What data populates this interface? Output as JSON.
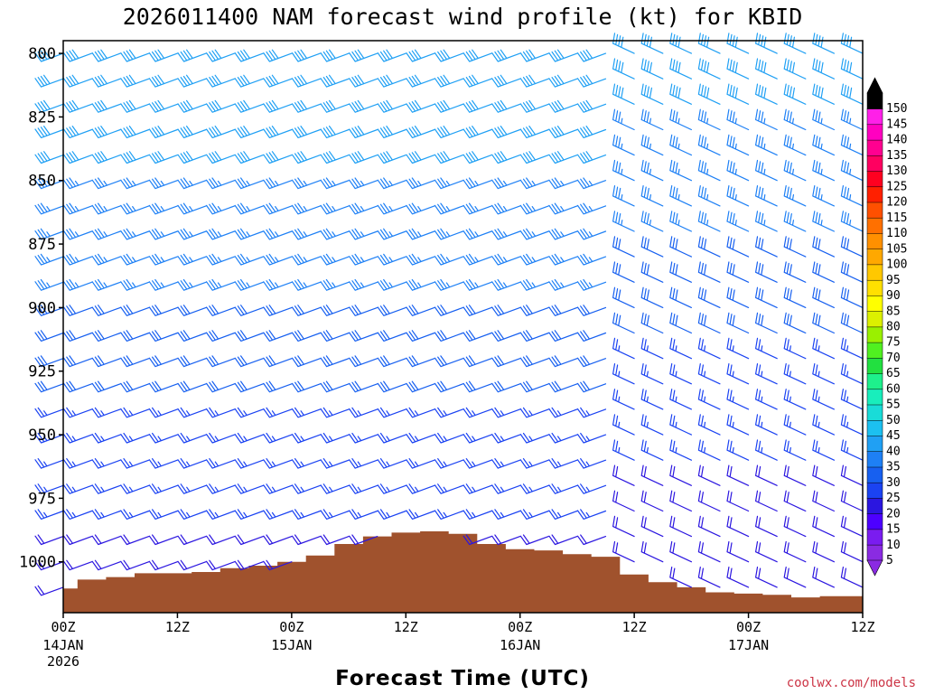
{
  "chart_data": {
    "type": "wind-barb-time-height",
    "title": "2026011400 NAM forecast wind profile (kt) for KBID",
    "xlabel": "Forecast Time (UTC)",
    "ylabel": "",
    "credit": "coolwx.com/models",
    "units": "kt",
    "pressure_range_hpa": [
      795,
      1020
    ],
    "pressure_levels_hpa": [
      800,
      810,
      820,
      830,
      840,
      850,
      860,
      870,
      880,
      890,
      900,
      910,
      920,
      930,
      940,
      950,
      960,
      970,
      980,
      990,
      1000,
      1010
    ],
    "y_ticks": [
      {
        "value": 800,
        "label": "800"
      },
      {
        "value": 825,
        "label": "825"
      },
      {
        "value": 850,
        "label": "850"
      },
      {
        "value": 875,
        "label": "875"
      },
      {
        "value": 900,
        "label": "900"
      },
      {
        "value": 925,
        "label": "925"
      },
      {
        "value": 950,
        "label": "950"
      },
      {
        "value": 975,
        "label": "975"
      },
      {
        "value": 1000,
        "label": "1000"
      }
    ],
    "time_range_hours": [
      0,
      84
    ],
    "time_step_hours": 3,
    "x_ticks": [
      {
        "hour": 0,
        "label": "00Z",
        "sub": [
          "14JAN",
          "2026"
        ]
      },
      {
        "hour": 12,
        "label": "12Z",
        "sub": []
      },
      {
        "hour": 24,
        "label": "00Z",
        "sub": [
          "15JAN"
        ]
      },
      {
        "hour": 36,
        "label": "12Z",
        "sub": []
      },
      {
        "hour": 48,
        "label": "00Z",
        "sub": [
          "16JAN"
        ]
      },
      {
        "hour": 60,
        "label": "12Z",
        "sub": []
      },
      {
        "hour": 72,
        "label": "00Z",
        "sub": [
          "17JAN"
        ]
      },
      {
        "hour": 84,
        "label": "12Z",
        "sub": []
      }
    ],
    "surface_pressure_hpa": {
      "hours": [
        0,
        3,
        6,
        9,
        12,
        15,
        18,
        21,
        24,
        27,
        30,
        33,
        36,
        39,
        42,
        45,
        48,
        51,
        54,
        57,
        60,
        63,
        66,
        69,
        72,
        75,
        78,
        81,
        84
      ],
      "pressure": [
        1010.5,
        1007,
        1006,
        1004.5,
        1004.5,
        1004,
        1002.5,
        1001.5,
        1000,
        997.5,
        993,
        990,
        988.5,
        988,
        989,
        993,
        995,
        995.5,
        997,
        998,
        1005,
        1008,
        1010,
        1012,
        1012.5,
        1013,
        1014,
        1013.5,
        1013.5
      ]
    },
    "wind_regimes": [
      {
        "hours": [
          0,
          57
        ],
        "direction_deg": 250,
        "speed_top_kt": 44,
        "speed_bottom_kt": 22
      },
      {
        "hours": [
          60,
          84
        ],
        "direction_deg": 295,
        "speed_top_kt": 42,
        "speed_bottom_kt": 20
      }
    ],
    "colorbar": {
      "labels": [
        5,
        10,
        15,
        20,
        25,
        30,
        35,
        40,
        45,
        50,
        55,
        60,
        65,
        70,
        75,
        80,
        85,
        90,
        95,
        100,
        105,
        110,
        115,
        120,
        125,
        130,
        135,
        140,
        145,
        150
      ],
      "colors": [
        "#8a2be2",
        "#7a1cf0",
        "#4d00ff",
        "#2b16e0",
        "#1b43f2",
        "#1760f0",
        "#1e80f5",
        "#20a0f4",
        "#1cc0f0",
        "#19dcd8",
        "#18eebc",
        "#1ef08c",
        "#22e040",
        "#50f020",
        "#9af000",
        "#dcf000",
        "#ffff00",
        "#ffe000",
        "#ffc800",
        "#ffa800",
        "#ff9000",
        "#ff7000",
        "#ff5000",
        "#ff2000",
        "#ff0020",
        "#ff0060",
        "#ff0090",
        "#ff00c0",
        "#ff20e8",
        "#000000"
      ]
    }
  }
}
